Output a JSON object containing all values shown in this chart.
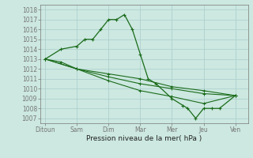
{
  "title": "",
  "xlabel": "Pression niveau de la mer( hPa )",
  "xtick_labels": [
    "Ditoun",
    "Sam",
    "Dim",
    "Mar",
    "Mer",
    "Jeu",
    "Ven"
  ],
  "xtick_positions": [
    0,
    2,
    4,
    6,
    8,
    10,
    12
  ],
  "ylim": [
    1006.5,
    1018.5
  ],
  "ytick_values": [
    1007,
    1008,
    1009,
    1010,
    1011,
    1012,
    1013,
    1014,
    1015,
    1016,
    1017,
    1018
  ],
  "bg_color": "#cce8e0",
  "line_color": "#1a6b1a",
  "grid_color": "#aacccc",
  "series": [
    {
      "x": [
        0,
        1,
        2,
        2.5,
        3,
        3.5,
        4,
        4.5,
        5,
        5.5,
        6,
        6.5,
        7,
        8,
        8.7,
        9,
        9.5,
        10,
        10.5,
        11,
        12
      ],
      "y": [
        1013,
        1014,
        1014.3,
        1015,
        1015,
        1016,
        1017,
        1017,
        1017.5,
        1016,
        1013.5,
        1011,
        1010.5,
        1009,
        1008.3,
        1008.0,
        1007.0,
        1008,
        1008,
        1008,
        1009.3
      ]
    },
    {
      "x": [
        0,
        1,
        2,
        4,
        6,
        8,
        10,
        12
      ],
      "y": [
        1013,
        1012.7,
        1012,
        1011.5,
        1011,
        1010.2,
        1009.8,
        1009.3
      ]
    },
    {
      "x": [
        0,
        2,
        4,
        6,
        8,
        10,
        12
      ],
      "y": [
        1013,
        1012,
        1011.2,
        1010.5,
        1010,
        1009.5,
        1009.3
      ]
    },
    {
      "x": [
        0,
        2,
        4,
        6,
        8,
        10,
        12
      ],
      "y": [
        1013,
        1012,
        1010.8,
        1009.8,
        1009.2,
        1008.5,
        1009.3
      ]
    }
  ]
}
